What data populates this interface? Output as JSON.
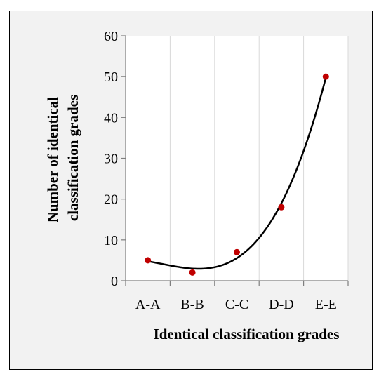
{
  "chart_data": {
    "type": "scatter",
    "trendline": "polynomial",
    "categories": [
      "A-A",
      "B-B",
      "C-C",
      "D-D",
      "E-E"
    ],
    "values": [
      5,
      2,
      7,
      18,
      50
    ],
    "xlabel": "Identical classification grades",
    "ylabel_lines": [
      "Number of identical",
      "classification grades"
    ],
    "ylim": [
      0,
      60
    ],
    "yticks": [
      0,
      10,
      20,
      30,
      40,
      50,
      60
    ],
    "grid": "vertical",
    "point_color": "#c00000",
    "line_color": "#000000"
  }
}
